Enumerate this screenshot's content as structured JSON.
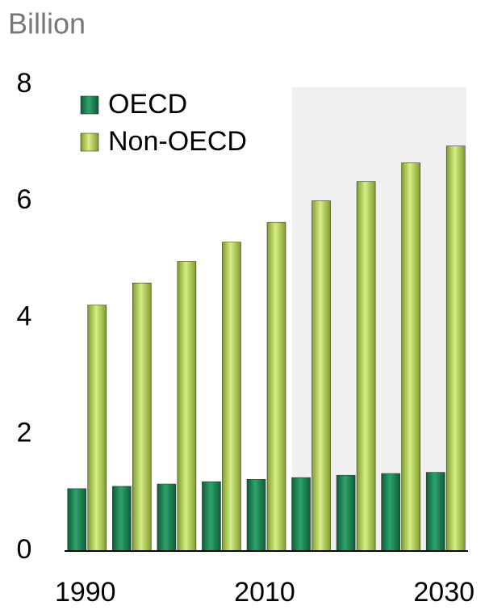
{
  "chart_data": {
    "type": "bar",
    "title": "Billion",
    "categories": [
      "1990",
      null,
      null,
      null,
      "2010",
      null,
      null,
      null,
      "2030"
    ],
    "series": [
      {
        "name": "OECD",
        "color": "#1e8a5a",
        "values": [
          1.07,
          1.11,
          1.15,
          1.19,
          1.23,
          1.26,
          1.3,
          1.33,
          1.35
        ]
      },
      {
        "name": "Non-OECD",
        "color": "#b5d65a",
        "values": [
          4.22,
          4.6,
          4.97,
          5.3,
          5.64,
          6.01,
          6.34,
          6.66,
          6.95
        ]
      }
    ],
    "ylim": [
      0,
      8
    ],
    "yticks": [
      0,
      2,
      4,
      6,
      8
    ],
    "legend": "top-left"
  }
}
